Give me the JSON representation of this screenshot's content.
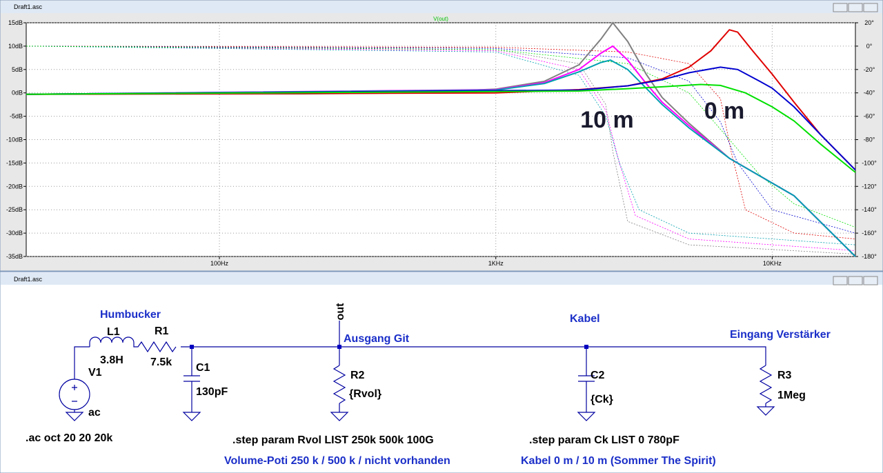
{
  "plot_window": {
    "title": "Draft1.asc"
  },
  "plot": {
    "type": "line",
    "trace_label": "V(out)",
    "x_scale": "log",
    "grid": true,
    "xlim": [
      20,
      20000
    ],
    "xticks": [
      {
        "value": 100,
        "label": "100Hz"
      },
      {
        "value": 1000,
        "label": "1KHz"
      },
      {
        "value": 10000,
        "label": "10KHz"
      }
    ],
    "ylim": [
      -35,
      15
    ],
    "yticks": [
      {
        "value": 15,
        "label": "15dB"
      },
      {
        "value": 10,
        "label": "10dB"
      },
      {
        "value": 5,
        "label": "5dB"
      },
      {
        "value": 0,
        "label": "0dB"
      },
      {
        "value": -5,
        "label": "-5dB"
      },
      {
        "value": -10,
        "label": "-10dB"
      },
      {
        "value": -15,
        "label": "-15dB"
      },
      {
        "value": -20,
        "label": "-20dB"
      },
      {
        "value": -25,
        "label": "-25dB"
      },
      {
        "value": -30,
        "label": "-30dB"
      },
      {
        "value": -35,
        "label": "-35dB"
      }
    ],
    "y2lim": [
      -180,
      20
    ],
    "y2ticks": [
      {
        "value": 20,
        "label": "20°"
      },
      {
        "value": 0,
        "label": "0°"
      },
      {
        "value": -20,
        "label": "-20°"
      },
      {
        "value": -40,
        "label": "-40°"
      },
      {
        "value": -60,
        "label": "-60°"
      },
      {
        "value": -80,
        "label": "-80°"
      },
      {
        "value": -100,
        "label": "-100°"
      },
      {
        "value": -120,
        "label": "-120°"
      },
      {
        "value": -140,
        "label": "-140°"
      },
      {
        "value": -160,
        "label": "-160°"
      },
      {
        "value": -180,
        "label": "-180°"
      }
    ],
    "series": [
      {
        "color": "#808080",
        "x": [
          20,
          200,
          500,
          1000,
          1500,
          2000,
          2400,
          2650,
          3000,
          3500,
          4000,
          5000,
          7000,
          12000,
          20000
        ],
        "values": [
          -0.3,
          -0.2,
          0,
          0.8,
          2.5,
          6,
          11.5,
          15,
          11,
          4,
          -1,
          -6.5,
          -14,
          -22,
          -35
        ]
      },
      {
        "color": "#ff00ff",
        "x": [
          20,
          1000,
          1500,
          2000,
          2400,
          2650,
          3000,
          3500,
          4000,
          5000,
          7000,
          12000,
          20000
        ],
        "values": [
          -0.3,
          0.7,
          2.2,
          5,
          8.5,
          10,
          7,
          2,
          -2,
          -7,
          -14,
          -22,
          -35
        ]
      },
      {
        "color": "#00a0b0",
        "x": [
          20,
          1000,
          1500,
          2000,
          2400,
          2600,
          3000,
          3500,
          4000,
          5000,
          7000,
          12000,
          20000
        ],
        "values": [
          -0.3,
          0.6,
          2,
          4.5,
          6.5,
          7,
          5,
          1,
          -2.5,
          -7.5,
          -14,
          -22,
          -35
        ]
      },
      {
        "color": "#e00000",
        "x": [
          20,
          1000,
          2000,
          3000,
          4000,
          5000,
          6000,
          7000,
          7500,
          8500,
          10000,
          12000,
          15000,
          20000
        ],
        "values": [
          -0.3,
          0,
          0.7,
          1.5,
          3,
          5.5,
          9,
          13.5,
          13,
          9,
          4,
          -2,
          -9,
          -16.5
        ]
      },
      {
        "color": "#0000d0",
        "x": [
          20,
          2000,
          3000,
          4000,
          5000,
          6500,
          7500,
          9000,
          10000,
          12000,
          15000,
          20000
        ],
        "values": [
          -0.3,
          0.6,
          1.5,
          2.8,
          4.3,
          5.5,
          5,
          2.5,
          1,
          -3,
          -9,
          -16.5
        ]
      },
      {
        "color": "#00e000",
        "x": [
          20,
          2000,
          3000,
          4000,
          5500,
          6500,
          8000,
          10000,
          12000,
          15000,
          20000
        ],
        "values": [
          -0.3,
          0.4,
          0.9,
          1.3,
          1.8,
          1.6,
          0,
          -3,
          -6,
          -11,
          -17
        ]
      },
      {
        "color": "#808080",
        "axis": "y2",
        "dashed": true,
        "x": [
          20,
          1000,
          2000,
          2500,
          2650,
          3000,
          5000,
          20000
        ],
        "values": [
          0,
          -3,
          -15,
          -50,
          -90,
          -150,
          -170,
          -178
        ]
      },
      {
        "color": "#ff00ff",
        "axis": "y2",
        "dashed": true,
        "x": [
          20,
          1000,
          2000,
          2500,
          2800,
          3200,
          5000,
          20000
        ],
        "values": [
          0,
          -4,
          -20,
          -55,
          -100,
          -145,
          -165,
          -175
        ]
      },
      {
        "color": "#00a0b0",
        "axis": "y2",
        "dashed": true,
        "x": [
          20,
          1000,
          2000,
          2500,
          2800,
          3300,
          5000,
          20000
        ],
        "values": [
          0,
          -5,
          -25,
          -60,
          -100,
          -140,
          -160,
          -170
        ]
      },
      {
        "color": "#e00000",
        "axis": "y2",
        "dashed": true,
        "x": [
          20,
          1000,
          3000,
          5000,
          6500,
          7100,
          8000,
          12000,
          20000
        ],
        "values": [
          0,
          -1,
          -5,
          -15,
          -45,
          -90,
          -140,
          -160,
          -165
        ]
      },
      {
        "color": "#0000d0",
        "axis": "y2",
        "dashed": true,
        "x": [
          20,
          1000,
          3000,
          5000,
          6500,
          7500,
          10000,
          20000
        ],
        "values": [
          0,
          -2,
          -10,
          -30,
          -65,
          -100,
          -140,
          -160
        ]
      },
      {
        "color": "#00e000",
        "axis": "y2",
        "dashed": true,
        "x": [
          20,
          1000,
          3000,
          5000,
          7000,
          9000,
          12000,
          20000
        ],
        "values": [
          0,
          -3,
          -15,
          -40,
          -80,
          -110,
          -135,
          -155
        ]
      }
    ],
    "annotations": [
      "10 m",
      "0 m"
    ]
  },
  "schematic_window": {
    "title": "Draft1.asc"
  },
  "schematic": {
    "labels": [
      "Humbucker",
      "L1",
      "3.8H",
      "R1",
      "7.5k",
      "V1",
      "ac",
      "C1",
      "130pF",
      "out",
      "Ausgang Git",
      "R2",
      "{Rvol}",
      "Kabel",
      "C2",
      "{Ck}",
      "Eingang Verstärker",
      "R3",
      "1Meg"
    ],
    "directives": [
      ".ac oct 20 20 20k",
      ".step param Rvol LIST 250k 500k 100G",
      ".step param Ck LIST 0 780pF"
    ],
    "comments": [
      "Volume-Poti 250 k / 500 k / nicht vorhanden",
      "Kabel 0 m / 10 m (Sommer The Spirit)"
    ]
  }
}
